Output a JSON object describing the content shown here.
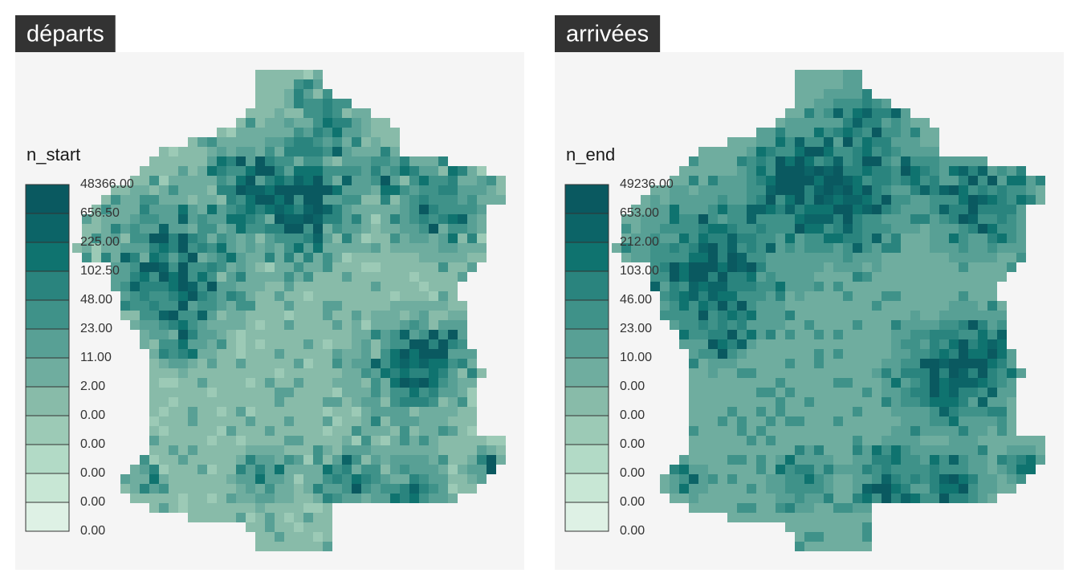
{
  "panels": [
    {
      "title": "départs",
      "legend": {
        "title": "n_start",
        "labels": [
          "48366.00",
          "656.50",
          "225.00",
          "102.50",
          "48.00",
          "23.00",
          "11.00",
          "2.00",
          "0.00",
          "0.00",
          "0.00",
          "0.00",
          "0.00"
        ],
        "colors": [
          "#0a5960",
          "#0c6467",
          "#0f736f",
          "#2a847e",
          "#3f9289",
          "#58a095",
          "#6fad9f",
          "#88bba9",
          "#9ccab6",
          "#b2dac6",
          "#c8e7d5",
          "#def1e5"
        ]
      }
    },
    {
      "title": "arrivées",
      "legend": {
        "title": "n_end",
        "labels": [
          "49236.00",
          "653.00",
          "212.00",
          "103.00",
          "46.00",
          "23.00",
          "10.00",
          "0.00",
          "0.00",
          "0.00",
          "0.00",
          "0.00",
          "0.00"
        ],
        "colors": [
          "#0a5960",
          "#0c6467",
          "#0f736f",
          "#2a847e",
          "#3f9289",
          "#58a095",
          "#6fad9f",
          "#88bba9",
          "#9ccab6",
          "#b2dac6",
          "#c8e7d5",
          "#def1e5"
        ]
      }
    }
  ]
}
